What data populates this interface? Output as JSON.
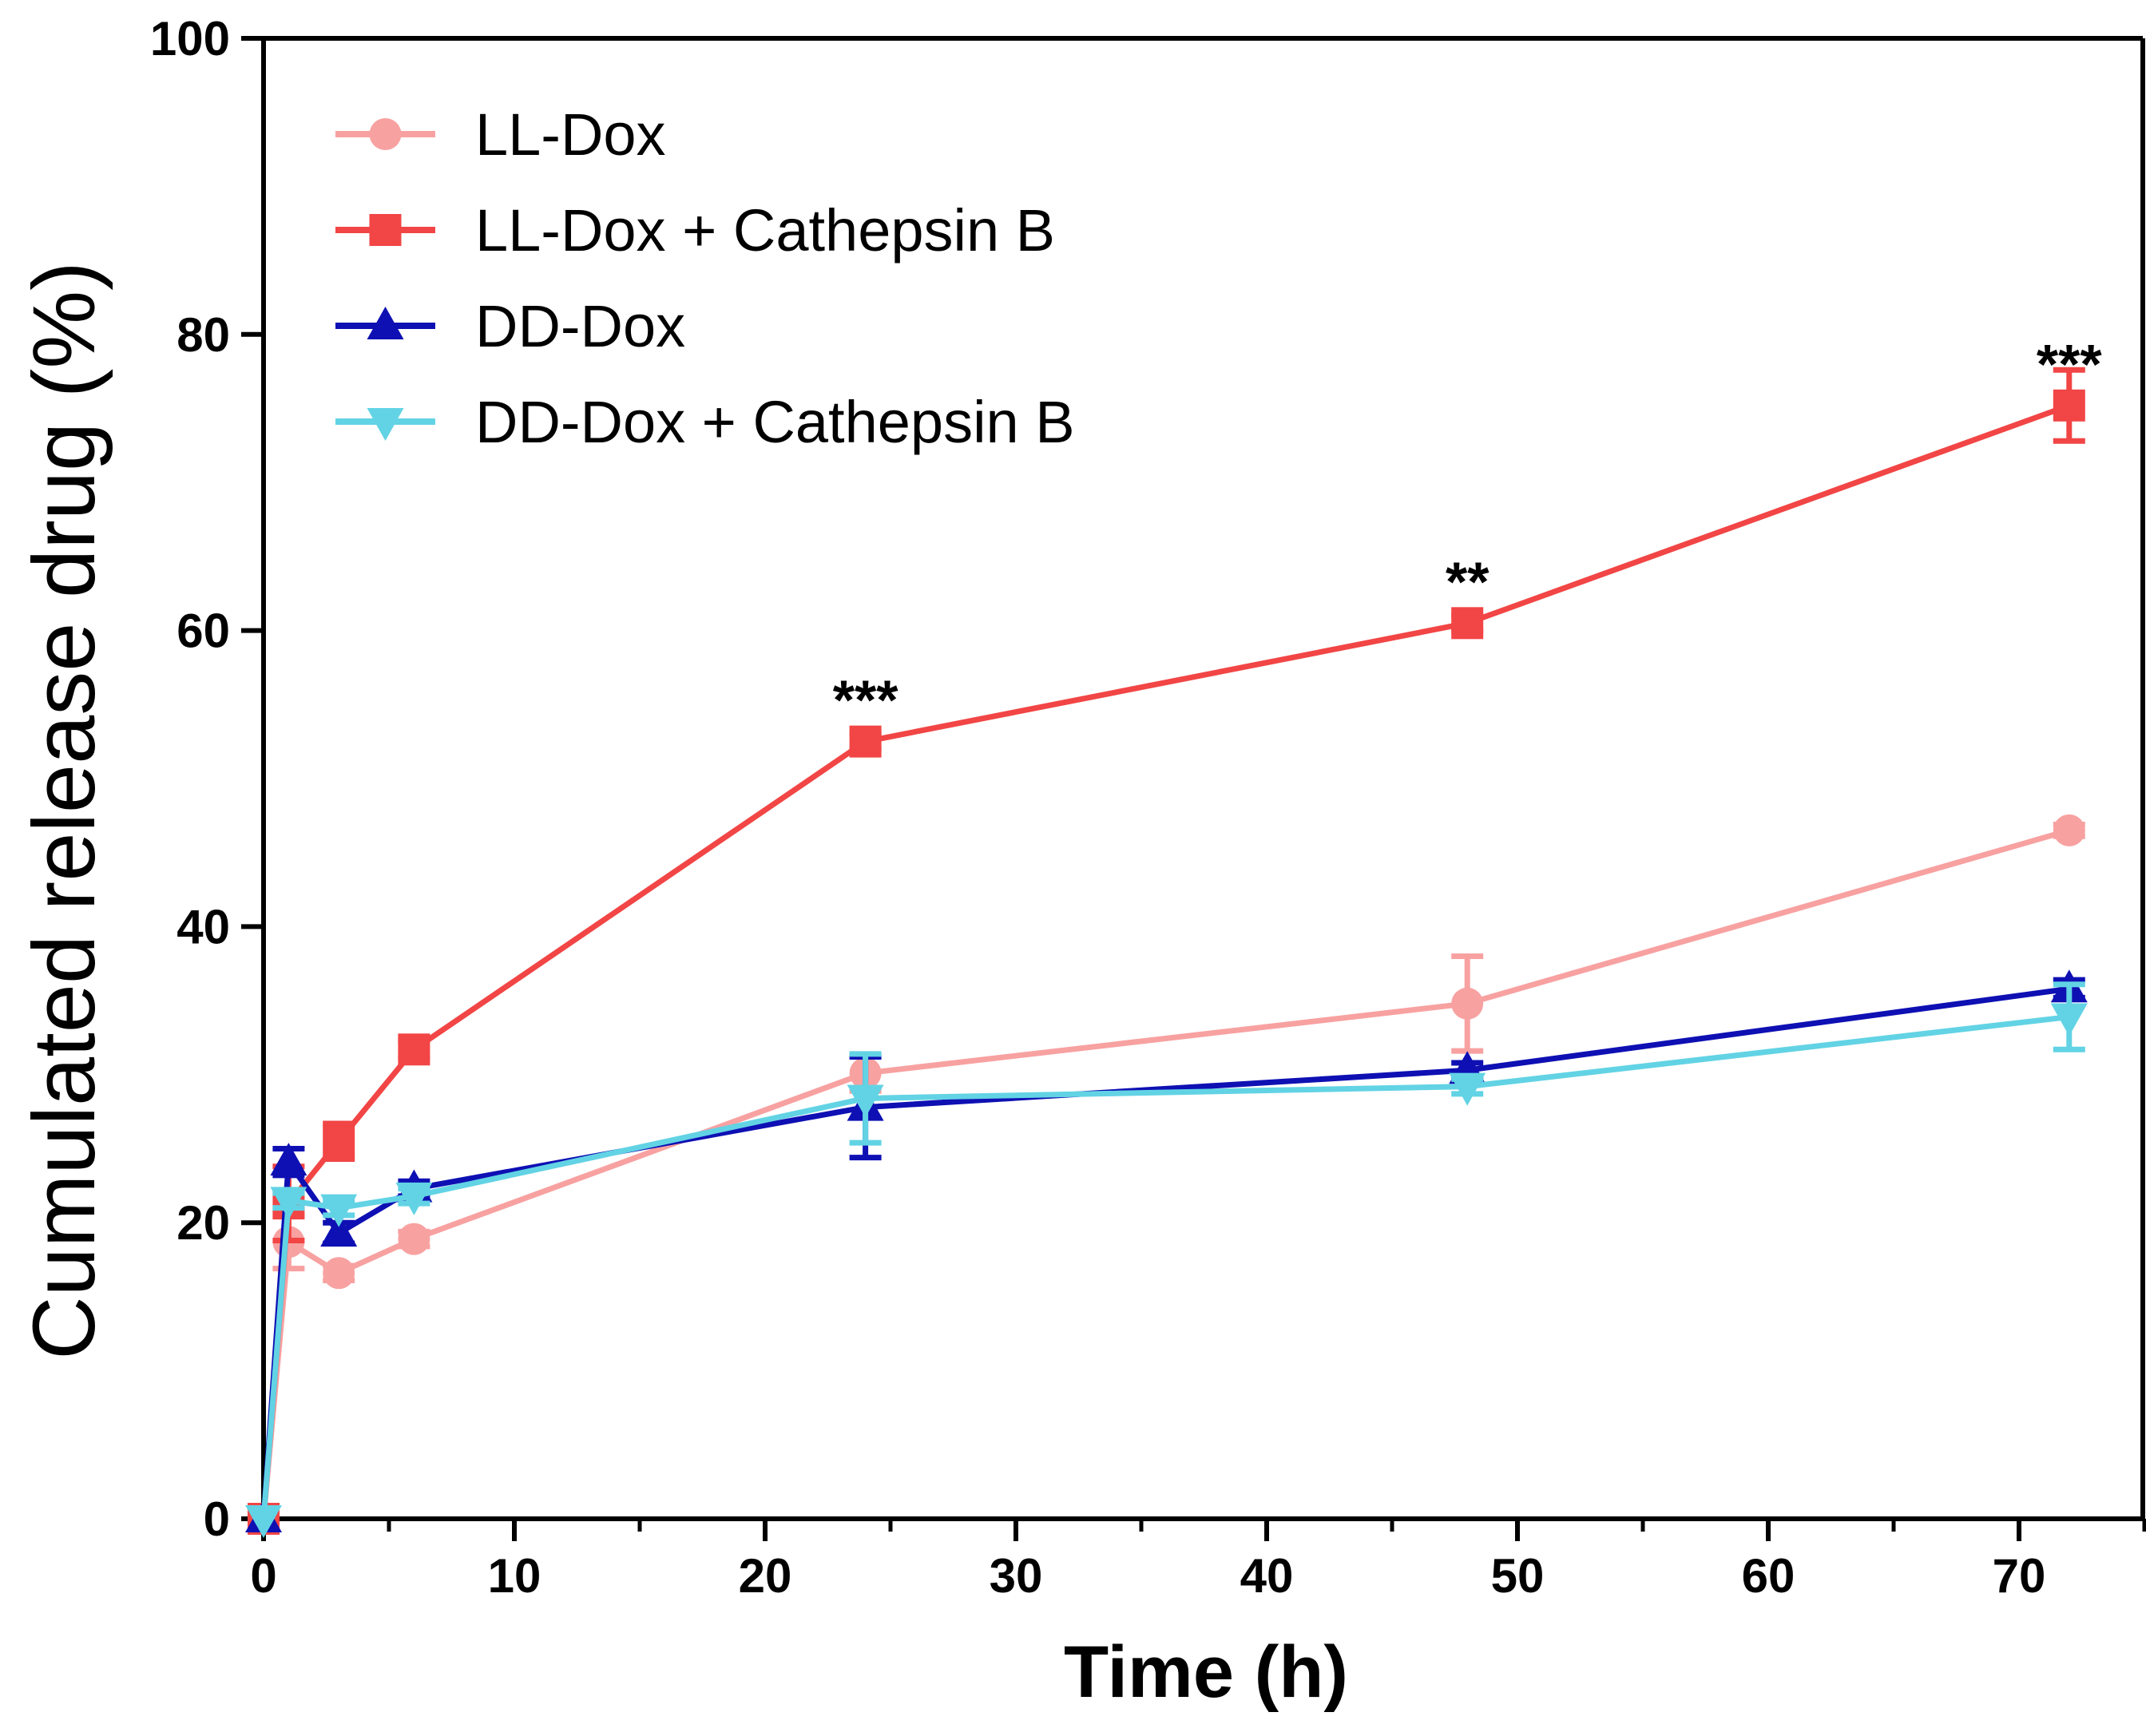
{
  "chart_data": {
    "type": "line",
    "title": "",
    "xlabel": "Time (h)",
    "ylabel": "Cumulated release drug (%)",
    "xlim": [
      0,
      75
    ],
    "ylim": [
      0,
      100
    ],
    "xticks": [
      0,
      10,
      20,
      30,
      40,
      50,
      60,
      70
    ],
    "yticks": [
      0,
      20,
      40,
      60,
      80,
      100
    ],
    "x_tick_labels": [
      "0",
      "10",
      "20",
      "30",
      "40",
      "50",
      "60",
      "70"
    ],
    "y_tick_labels": [
      "0",
      "20",
      "40",
      "60",
      "80",
      "100"
    ],
    "grid": false,
    "legend_position": "top-left",
    "x": [
      0,
      1,
      3,
      6,
      24,
      48,
      72
    ],
    "series": [
      {
        "name": "LL-Dox",
        "color": "#f8a1a1",
        "marker": "circle",
        "values": [
          0,
          18.7,
          16.6,
          18.9,
          30.1,
          34.8,
          46.5
        ],
        "errors": [
          0,
          1.8,
          0.5,
          0.5,
          1.2,
          3.2,
          0.4
        ]
      },
      {
        "name": "LL-Dox + Cathepsin B",
        "color": "#f24545",
        "marker": "square",
        "values": [
          0,
          21.3,
          25.5,
          31.7,
          52.5,
          60.5,
          75.2
        ],
        "errors": [
          0,
          2.5,
          1.2,
          0.6,
          0.5,
          0.5,
          2.4
        ]
      },
      {
        "name": "DD-Dox",
        "color": "#0e10b3",
        "marker": "triangle-up",
        "values": [
          0,
          24.1,
          19.3,
          22.3,
          27.8,
          30.3,
          35.8
        ],
        "errors": [
          0,
          0.9,
          0.7,
          0.5,
          3.4,
          0.5,
          0.6
        ]
      },
      {
        "name": "DD-Dox + Cathepsin B",
        "color": "#62d3e4",
        "marker": "triangle-down",
        "values": [
          0,
          21.5,
          21.0,
          21.8,
          28.4,
          29.2,
          33.9
        ],
        "errors": [
          0,
          0.5,
          0.5,
          0.5,
          3.0,
          0.5,
          2.2
        ]
      }
    ],
    "annotations": [
      {
        "x": 24,
        "y": 52.5,
        "text": "***"
      },
      {
        "x": 48,
        "y": 60.5,
        "text": "**"
      },
      {
        "x": 72,
        "y": 75.2,
        "text": "***"
      }
    ]
  }
}
